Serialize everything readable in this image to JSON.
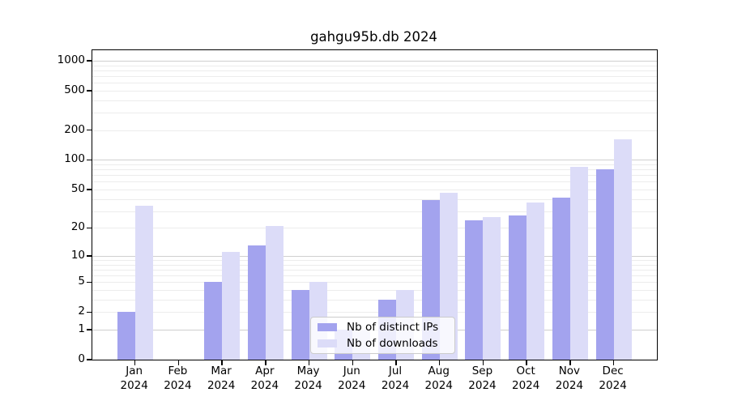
{
  "chart_data": {
    "type": "bar",
    "title": "gahgu95b.db 2024",
    "categories": [
      "Jan",
      "Feb",
      "Mar",
      "Apr",
      "May",
      "Jun",
      "Jul",
      "Aug",
      "Sep",
      "Oct",
      "Nov",
      "Dec"
    ],
    "xtick_year": "2024",
    "series": [
      {
        "name": "Nb of distinct IPs",
        "color": "#a3a3ee",
        "values": [
          2,
          0,
          5,
          13,
          4,
          1,
          3,
          39,
          24,
          27,
          41,
          80
        ]
      },
      {
        "name": "Nb of downloads",
        "color": "#dcdcf8",
        "values": [
          34,
          0,
          11,
          21,
          5,
          1,
          4,
          46,
          26,
          37,
          85,
          162
        ]
      }
    ],
    "yscale": "log10(value+1)",
    "ylim": [
      0,
      1200
    ],
    "yticks": [
      0,
      1,
      2,
      5,
      10,
      20,
      50,
      100,
      200,
      500,
      1000
    ],
    "grid": {
      "major_lines": [
        1,
        10,
        100,
        1000
      ],
      "minor_multipliers": [
        2,
        3,
        4,
        5,
        6,
        7,
        8,
        9
      ],
      "minor_decades": [
        1,
        10,
        100
      ]
    },
    "legend_position": "bottom-center-overlay"
  },
  "colors": {
    "background": "#ffffff",
    "axis": "#000000",
    "grid_major": "#cfcfcf",
    "grid_minor": "#ececec",
    "legend_border": "#cccccc"
  }
}
